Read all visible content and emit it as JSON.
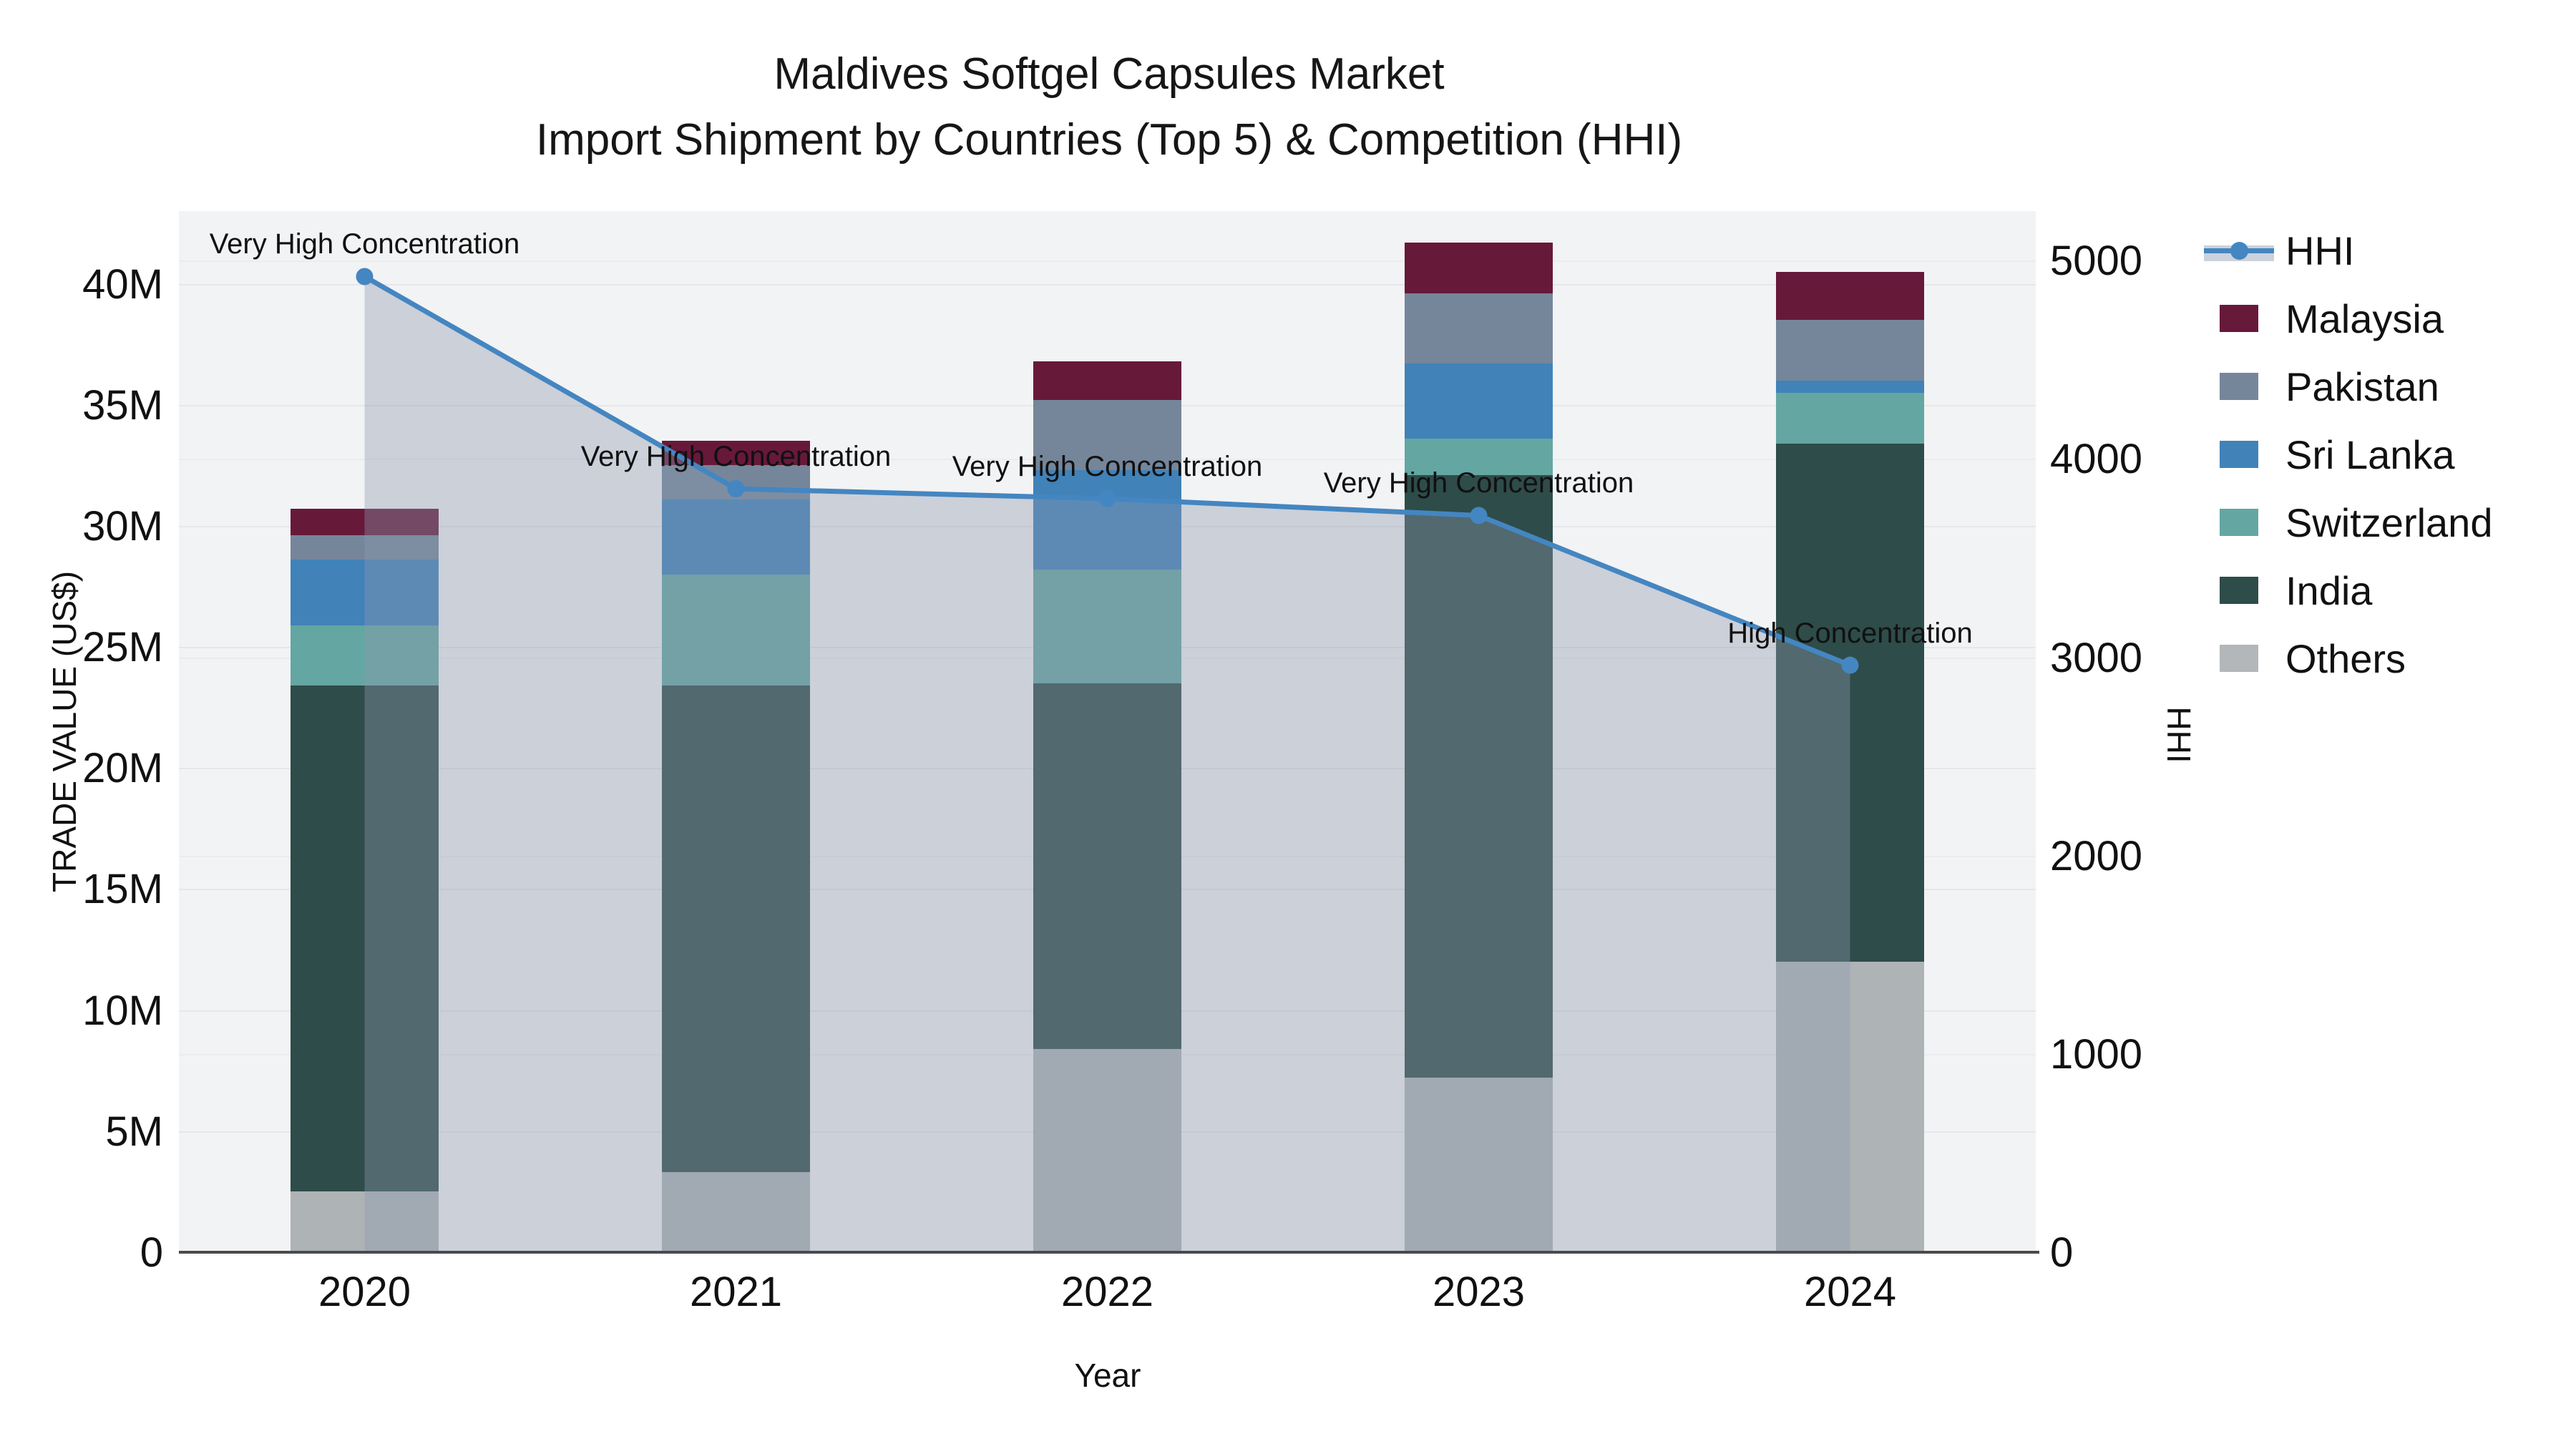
{
  "title": {
    "line1": "Maldives Softgel Capsules Market",
    "line2": "Import Shipment by Countries (Top 5) & Competition (HHI)"
  },
  "axes": {
    "left": {
      "title": "TRADE VALUE (US$)",
      "ticks": [
        "0",
        "5M",
        "10M",
        "15M",
        "20M",
        "25M",
        "30M",
        "35M",
        "40M"
      ],
      "tick_values": [
        0,
        5,
        10,
        15,
        20,
        25,
        30,
        35,
        40
      ],
      "max": 43
    },
    "right": {
      "title": "HHI",
      "ticks": [
        "0",
        "1000",
        "2000",
        "3000",
        "4000",
        "5000"
      ],
      "tick_values": [
        0,
        1000,
        2000,
        3000,
        4000,
        5000
      ],
      "max": 5250
    },
    "x": {
      "title": "Year",
      "categories": [
        "2020",
        "2021",
        "2022",
        "2023",
        "2024"
      ]
    }
  },
  "chart_data": {
    "type": "bar+line",
    "title": "Maldives Softgel Capsules Market — Import Shipment by Countries (Top 5) & Competition (HHI)",
    "categories": [
      "2020",
      "2021",
      "2022",
      "2023",
      "2024"
    ],
    "ylabel_left": "TRADE VALUE (US$), millions",
    "ylabel_right": "HHI",
    "ylim_left": [
      0,
      43
    ],
    "ylim_right": [
      0,
      5250
    ],
    "grid": true,
    "legend_position": "right",
    "series": [
      {
        "name": "Malaysia",
        "color": "#67193A",
        "values": [
          1.1,
          1.0,
          1.6,
          2.1,
          2.0
        ]
      },
      {
        "name": "Pakistan",
        "color": "#75869B",
        "values": [
          1.0,
          1.4,
          2.9,
          2.9,
          2.5
        ]
      },
      {
        "name": "Sri Lanka",
        "color": "#4182B8",
        "values": [
          2.7,
          3.1,
          4.1,
          3.1,
          0.5
        ]
      },
      {
        "name": "Switzerland",
        "color": "#64A6A2",
        "values": [
          2.5,
          4.6,
          4.7,
          1.5,
          2.1
        ]
      },
      {
        "name": "India",
        "color": "#2E4C49",
        "values": [
          20.9,
          20.1,
          15.1,
          24.9,
          21.4
        ]
      },
      {
        "name": "Others",
        "color": "#AEB3B6",
        "values": [
          2.5,
          3.3,
          8.4,
          7.2,
          12.0
        ]
      }
    ],
    "stack_order": [
      "Others",
      "India",
      "Switzerland",
      "Sri Lanka",
      "Pakistan",
      "Malaysia"
    ],
    "bar_totals": [
      30.7,
      33.5,
      36.8,
      41.7,
      40.5
    ],
    "line_series": {
      "name": "HHI",
      "color": "#4486C1",
      "fill_color": "rgba(139,152,173,0.38)",
      "values": [
        4920,
        3850,
        3800,
        3715,
        2960
      ]
    },
    "annotations": [
      {
        "x": "2020",
        "text": "Very High Concentration"
      },
      {
        "x": "2021",
        "text": "Very High Concentration"
      },
      {
        "x": "2022",
        "text": "Very High Concentration"
      },
      {
        "x": "2023",
        "text": "Very High Concentration"
      },
      {
        "x": "2024",
        "text": "High Concentration"
      }
    ]
  },
  "legend": {
    "items": [
      {
        "label": "HHI",
        "type": "line",
        "color": "#4486C1"
      },
      {
        "label": "Malaysia",
        "type": "box",
        "color": "#67193A"
      },
      {
        "label": "Pakistan",
        "type": "box",
        "color": "#75869B"
      },
      {
        "label": "Sri Lanka",
        "type": "box",
        "color": "#4182B8"
      },
      {
        "label": "Switzerland",
        "type": "box",
        "color": "#64A6A2"
      },
      {
        "label": "India",
        "type": "box",
        "color": "#2E4C49"
      },
      {
        "label": "Others",
        "type": "box",
        "color": "#B3B7BA"
      }
    ]
  },
  "colors": {
    "plot_background": "#F2F3F4",
    "page_background": "#FFFFFF",
    "gridline": "#E5E7EA",
    "axis_line": "#4A4A4A",
    "hhi_line": "#4486C1",
    "hhi_area_fill": "rgba(139,152,173,0.38)",
    "text": "#111111"
  }
}
